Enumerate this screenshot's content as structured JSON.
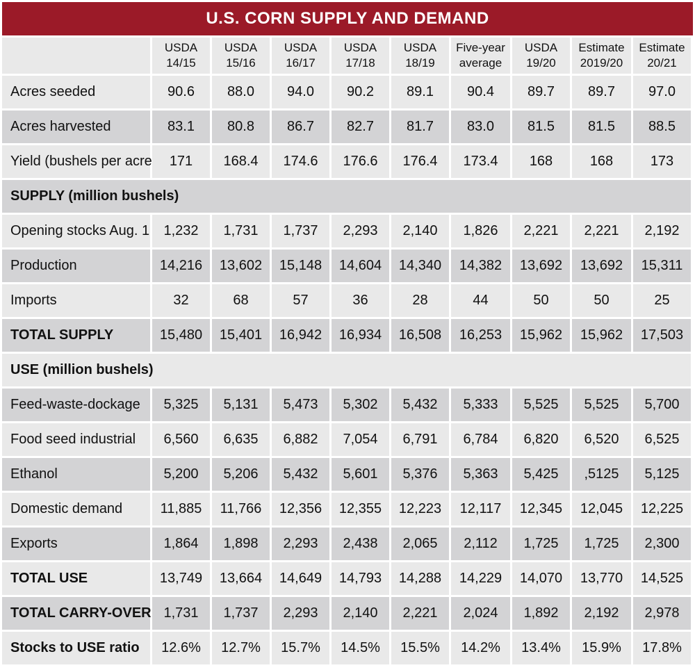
{
  "chart_data": {
    "type": "table",
    "title": "U.S. CORN SUPPLY AND DEMAND",
    "columns": [
      {
        "line1": "USDA",
        "line2": "14/15"
      },
      {
        "line1": "USDA",
        "line2": "15/16"
      },
      {
        "line1": "USDA",
        "line2": "16/17"
      },
      {
        "line1": "USDA",
        "line2": "17/18"
      },
      {
        "line1": "USDA",
        "line2": "18/19"
      },
      {
        "line1": "Five-year",
        "line2": "average"
      },
      {
        "line1": "USDA",
        "line2": "19/20"
      },
      {
        "line1": "Estimate",
        "line2": "2019/20"
      },
      {
        "line1": "Estimate",
        "line2": "20/21"
      }
    ],
    "rows": [
      {
        "kind": "data",
        "label": "Acres seeded",
        "values": [
          "90.6",
          "88.0",
          "94.0",
          "90.2",
          "89.1",
          "90.4",
          "89.7",
          "89.7",
          "97.0"
        ]
      },
      {
        "kind": "data",
        "label": "Acres harvested",
        "values": [
          "83.1",
          "80.8",
          "86.7",
          "82.7",
          "81.7",
          "83.0",
          "81.5",
          "81.5",
          "88.5"
        ]
      },
      {
        "kind": "data",
        "label": "Yield (bushels per acre)",
        "values": [
          "171",
          "168.4",
          "174.6",
          "176.6",
          "176.4",
          "173.4",
          "168",
          "168",
          "173"
        ]
      },
      {
        "kind": "section",
        "label": "SUPPLY (million bushels)"
      },
      {
        "kind": "data",
        "label": "Opening stocks Aug. 1",
        "values": [
          "1,232",
          "1,731",
          "1,737",
          "2,293",
          "2,140",
          "1,826",
          "2,221",
          "2,221",
          "2,192"
        ]
      },
      {
        "kind": "data",
        "label": "Production",
        "values": [
          "14,216",
          "13,602",
          "15,148",
          "14,604",
          "14,340",
          "14,382",
          "13,692",
          "13,692",
          "15,311"
        ]
      },
      {
        "kind": "data",
        "label": "Imports",
        "values": [
          "32",
          "68",
          "57",
          "36",
          "28",
          "44",
          "50",
          "50",
          "25"
        ]
      },
      {
        "kind": "total",
        "label": "TOTAL SUPPLY",
        "values": [
          "15,480",
          "15,401",
          "16,942",
          "16,934",
          "16,508",
          "16,253",
          "15,962",
          "15,962",
          "17,503"
        ]
      },
      {
        "kind": "section",
        "label": "USE (million bushels)"
      },
      {
        "kind": "data",
        "label": "Feed-waste-dockage",
        "values": [
          "5,325",
          "5,131",
          "5,473",
          "5,302",
          "5,432",
          "5,333",
          "5,525",
          "5,525",
          "5,700"
        ]
      },
      {
        "kind": "data",
        "label": "Food seed industrial",
        "values": [
          "6,560",
          "6,635",
          "6,882",
          "7,054",
          "6,791",
          "6,784",
          "6,820",
          "6,520",
          "6,525"
        ]
      },
      {
        "kind": "data",
        "label": "Ethanol",
        "values": [
          "5,200",
          "5,206",
          "5,432",
          "5,601",
          "5,376",
          "5,363",
          "5,425",
          ",5125",
          "5,125"
        ]
      },
      {
        "kind": "data",
        "label": "Domestic demand",
        "values": [
          "11,885",
          "11,766",
          "12,356",
          "12,355",
          "12,223",
          "12,117",
          "12,345",
          "12,045",
          "12,225"
        ]
      },
      {
        "kind": "data",
        "label": "Exports",
        "values": [
          "1,864",
          "1,898",
          "2,293",
          "2,438",
          "2,065",
          "2,112",
          "1,725",
          "1,725",
          "2,300"
        ]
      },
      {
        "kind": "total",
        "label": "TOTAL USE",
        "values": [
          "13,749",
          "13,664",
          "14,649",
          "14,793",
          "14,288",
          "14,229",
          "14,070",
          "13,770",
          "14,525"
        ]
      },
      {
        "kind": "total",
        "label": "TOTAL CARRY-OVER",
        "values": [
          "1,731",
          "1,737",
          "2,293",
          "2,140",
          "2,221",
          "2,024",
          "1,892",
          "2,192",
          "2,978"
        ]
      },
      {
        "kind": "total",
        "label": "Stocks to USE ratio",
        "values": [
          "12.6%",
          "12.7%",
          "15.7%",
          "14.5%",
          "15.5%",
          "14.2%",
          "13.4%",
          "15.9%",
          "17.8%"
        ]
      }
    ],
    "colors": {
      "title_bg": "#9b1a28",
      "row_light": "#e9e9e9",
      "row_dark": "#d3d3d5"
    }
  }
}
